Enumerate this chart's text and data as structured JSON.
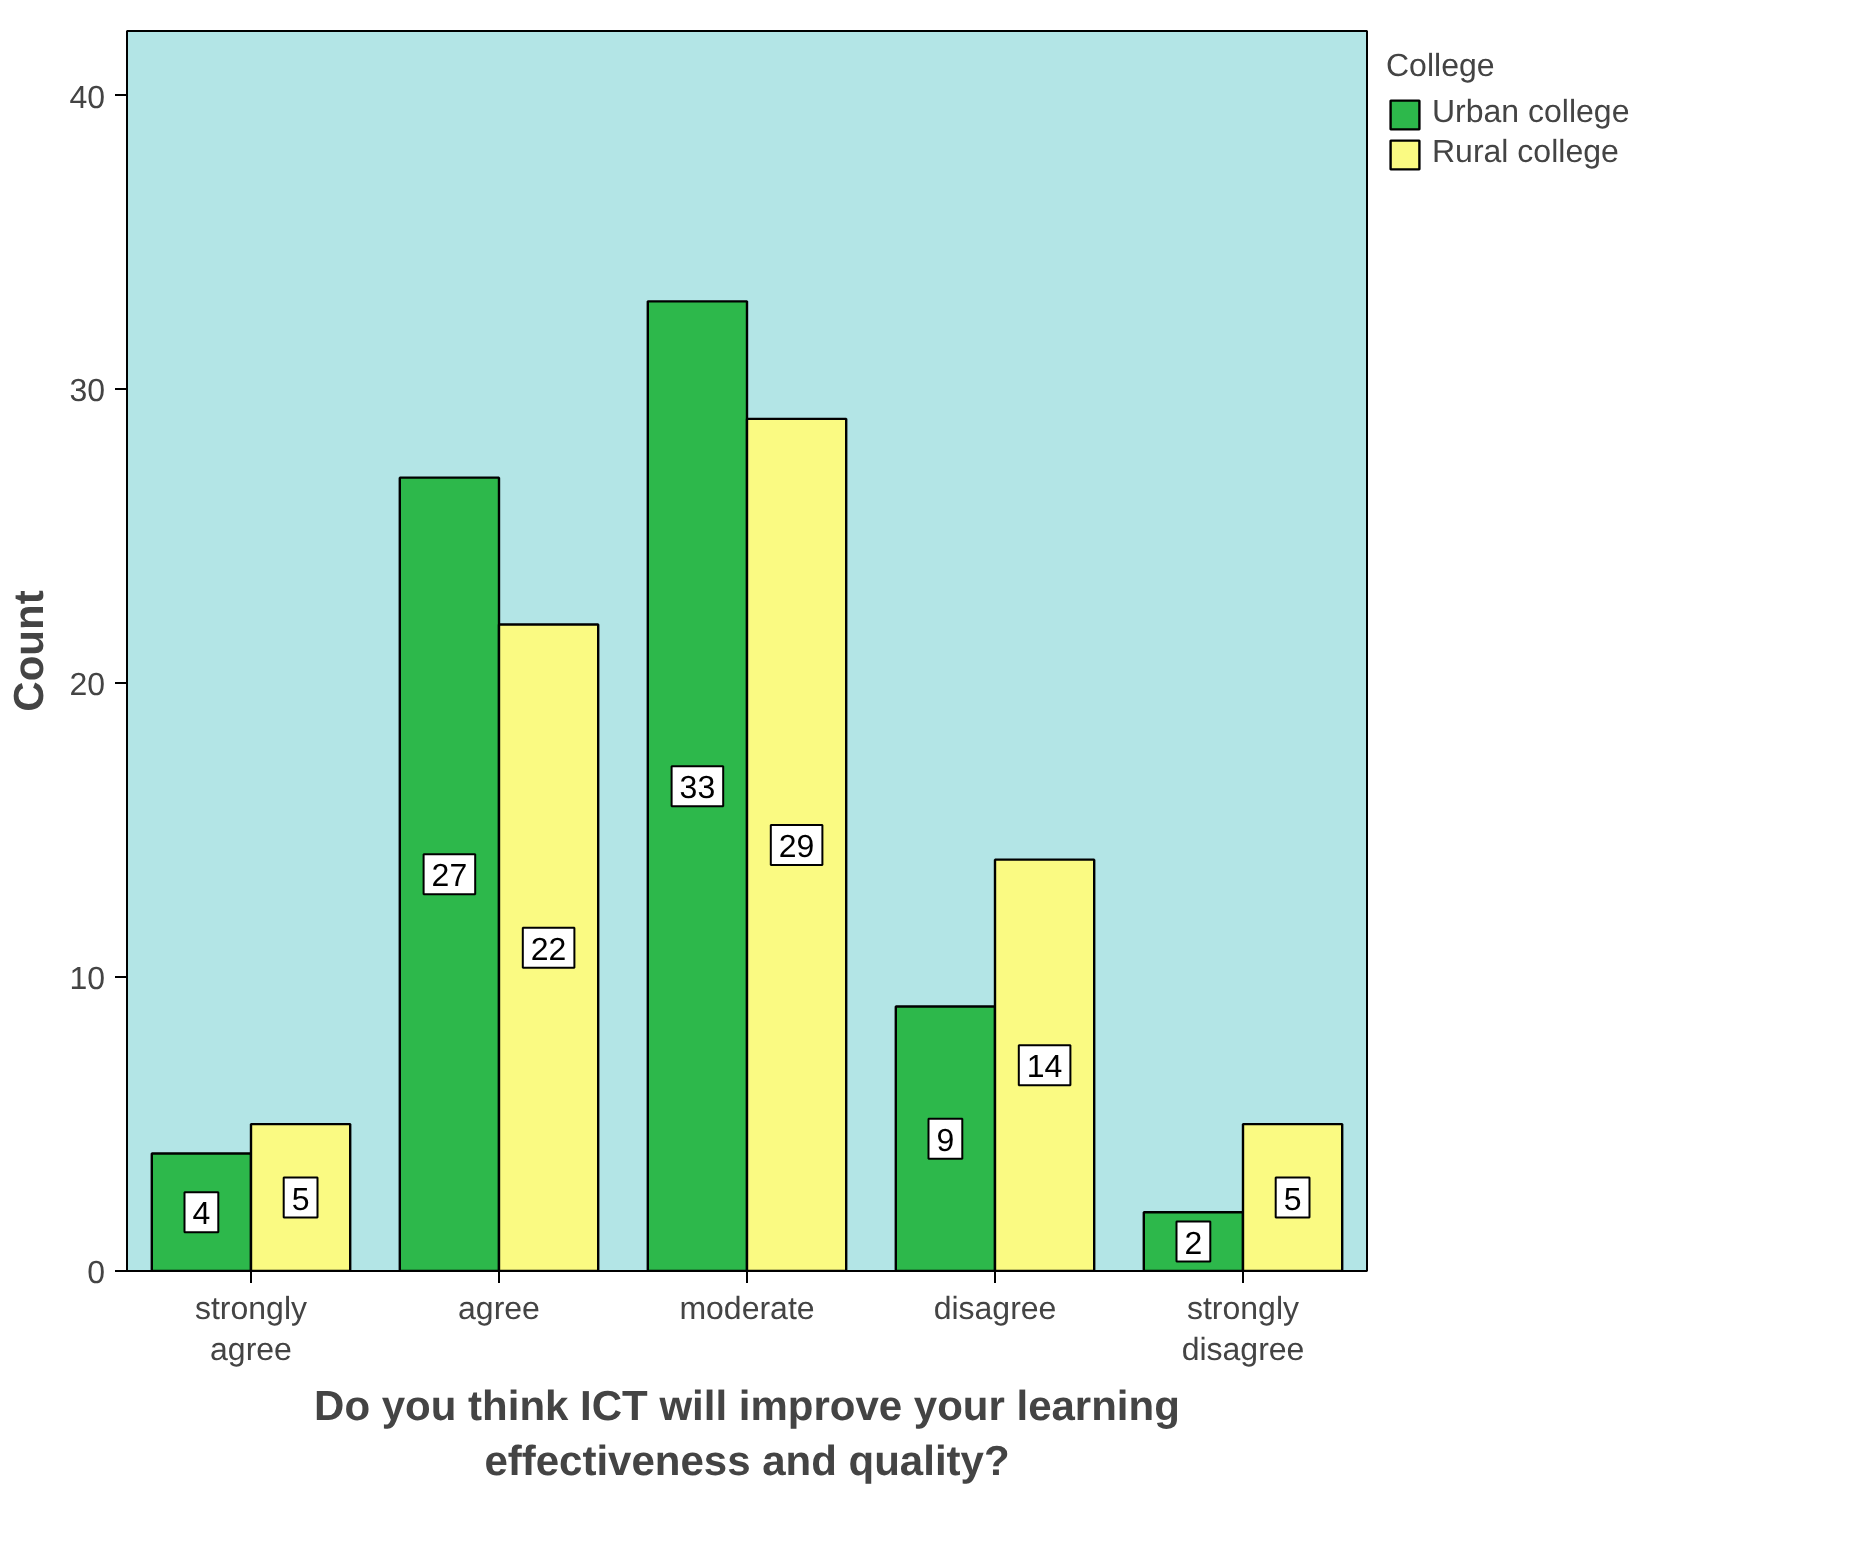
{
  "chart_data": {
    "type": "bar",
    "xlabel": "Do you think ICT will improve your learning effectiveness and quality?",
    "ylabel": "Count",
    "legend_title": "College",
    "categories": [
      "strongly agree",
      "agree",
      "moderate",
      "disagree",
      "strongly disagree"
    ],
    "series": [
      {
        "name": "Urban college",
        "color": "#2db84b",
        "values": [
          4,
          27,
          33,
          9,
          2
        ]
      },
      {
        "name": "Rural college",
        "color": "#fafa82",
        "values": [
          5,
          22,
          29,
          14,
          5
        ]
      }
    ],
    "ylim": [
      0,
      42.2
    ],
    "yticks": [
      0,
      10,
      20,
      30,
      40
    ],
    "grid": false,
    "legend": "top right",
    "data_labels": true
  }
}
